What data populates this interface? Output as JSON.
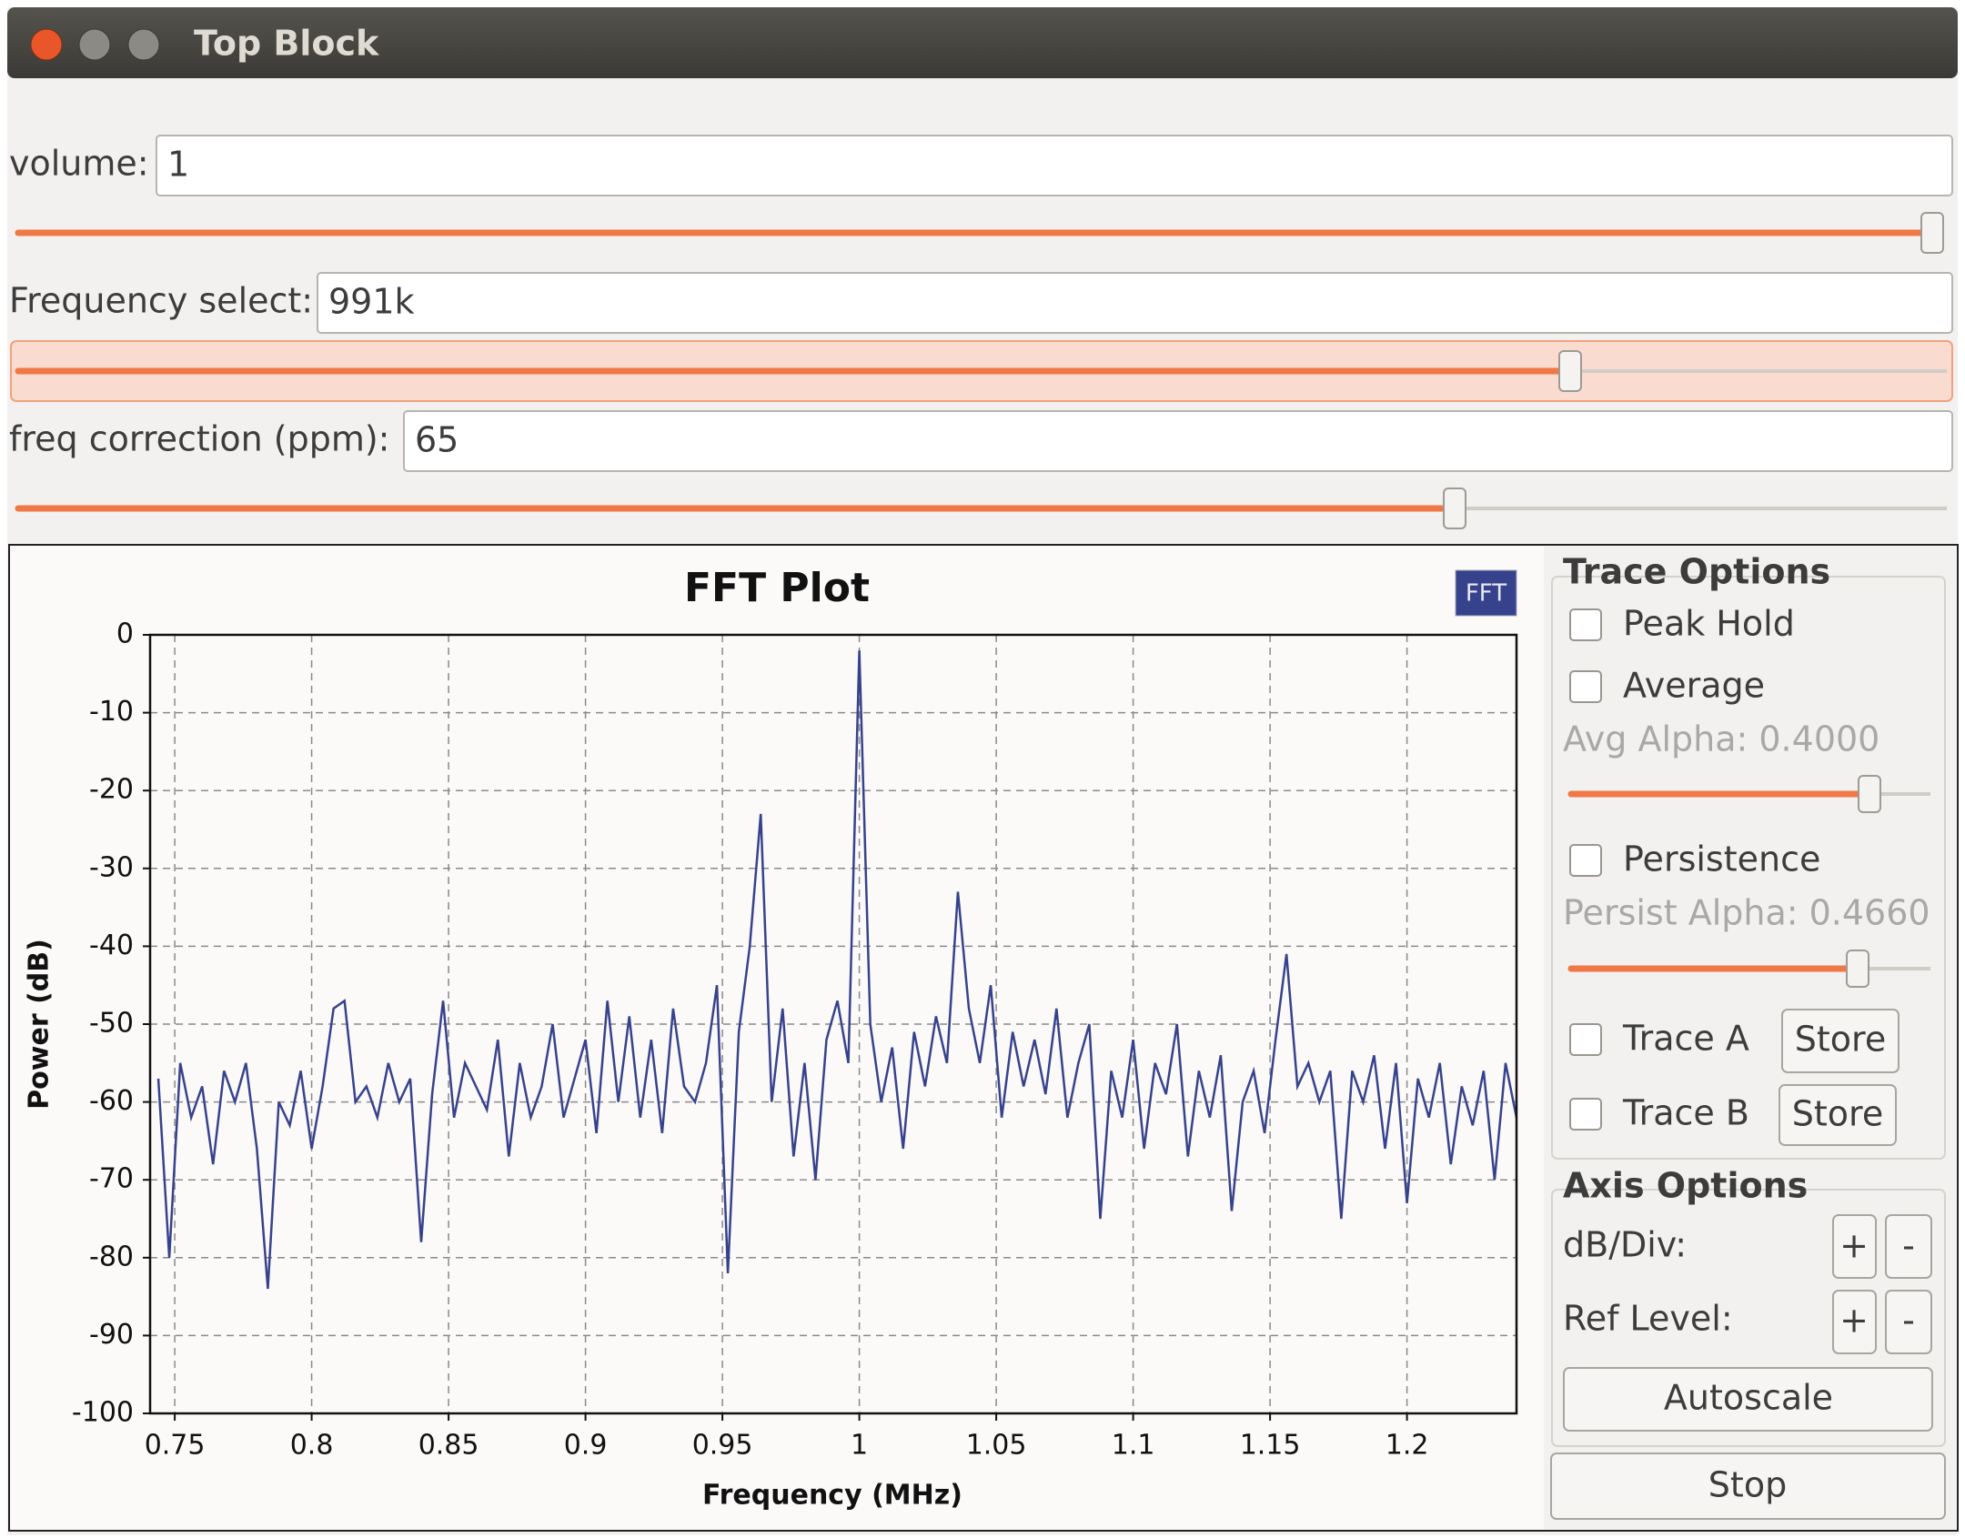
{
  "window": {
    "title": "Top Block"
  },
  "controls": [
    {
      "label": "volume:",
      "value": "1"
    },
    {
      "label": "Frequency select:",
      "value": "991k"
    },
    {
      "label": "freq correction (ppm):",
      "value": "65"
    }
  ],
  "chart_data": {
    "type": "line",
    "title": "FFT Plot",
    "x_label": "Frequency (MHz)",
    "y_label": "Power (dB)",
    "x": [
      0.744,
      0.748,
      0.752,
      0.756,
      0.76,
      0.764,
      0.768,
      0.772,
      0.776,
      0.78,
      0.784,
      0.788,
      0.792,
      0.796,
      0.8,
      0.804,
      0.808,
      0.812,
      0.816,
      0.82,
      0.824,
      0.828,
      0.832,
      0.836,
      0.84,
      0.844,
      0.848,
      0.852,
      0.856,
      0.86,
      0.864,
      0.868,
      0.872,
      0.876,
      0.88,
      0.884,
      0.888,
      0.892,
      0.896,
      0.9,
      0.904,
      0.908,
      0.912,
      0.916,
      0.92,
      0.924,
      0.928,
      0.932,
      0.936,
      0.94,
      0.944,
      0.948,
      0.952,
      0.956,
      0.96,
      0.964,
      0.968,
      0.972,
      0.976,
      0.98,
      0.984,
      0.988,
      0.992,
      0.996,
      1.0,
      1.004,
      1.008,
      1.012,
      1.016,
      1.02,
      1.024,
      1.028,
      1.032,
      1.036,
      1.04,
      1.044,
      1.048,
      1.052,
      1.056,
      1.06,
      1.064,
      1.068,
      1.072,
      1.076,
      1.08,
      1.084,
      1.088,
      1.092,
      1.096,
      1.1,
      1.104,
      1.108,
      1.112,
      1.116,
      1.12,
      1.124,
      1.128,
      1.132,
      1.136,
      1.14,
      1.144,
      1.148,
      1.152,
      1.156,
      1.16,
      1.164,
      1.168,
      1.172,
      1.176,
      1.18,
      1.184,
      1.188,
      1.192,
      1.196,
      1.2,
      1.204,
      1.208,
      1.212,
      1.216,
      1.22,
      1.224,
      1.228,
      1.232,
      1.236,
      1.24
    ],
    "series": [
      {
        "name": "FFT",
        "color": "#36438c",
        "values": [
          -57,
          -80,
          -55,
          -62,
          -58,
          -68,
          -56,
          -60,
          -55,
          -66,
          -84,
          -60,
          -63,
          -56,
          -66,
          -58,
          -48,
          -47,
          -60,
          -58,
          -62,
          -55,
          -60,
          -57,
          -78,
          -59,
          -47,
          -62,
          -55,
          -58,
          -61,
          -52,
          -67,
          -55,
          -62,
          -58,
          -50,
          -62,
          -57,
          -52,
          -64,
          -47,
          -60,
          -49,
          -62,
          -52,
          -64,
          -48,
          -58,
          -60,
          -55,
          -45,
          -82,
          -51,
          -40,
          -23,
          -60,
          -48,
          -67,
          -55,
          -70,
          -52,
          -47,
          -55,
          -2,
          -50,
          -60,
          -53,
          -66,
          -51,
          -58,
          -49,
          -55,
          -33,
          -48,
          -55,
          -45,
          -62,
          -51,
          -58,
          -52,
          -59,
          -48,
          -62,
          -55,
          -50,
          -75,
          -56,
          -62,
          -52,
          -66,
          -55,
          -59,
          -50,
          -67,
          -56,
          -62,
          -54,
          -74,
          -60,
          -56,
          -64,
          -52,
          -41,
          -58,
          -55,
          -60,
          -56,
          -75,
          -56,
          -60,
          -54,
          -66,
          -55,
          -73,
          -57,
          -62,
          -55,
          -68,
          -58,
          -63,
          -56,
          -70,
          -55,
          -62
        ]
      }
    ],
    "xlim": [
      0.741,
      1.24
    ],
    "ylim": [
      -100,
      0
    ],
    "xticks": [
      0.75,
      0.8,
      0.85,
      0.9,
      0.95,
      1,
      1.05,
      1.1,
      1.15,
      1.2
    ],
    "yticks": [
      0,
      -10,
      -20,
      -30,
      -40,
      -50,
      -60,
      -70,
      -80,
      -90,
      -100
    ],
    "grid": true,
    "legend": "upper right"
  },
  "trace_options": {
    "title": "Trace Options",
    "peak_hold": "Peak Hold",
    "average": "Average",
    "avg_alpha": "Avg Alpha: 0.4000",
    "persistence": "Persistence",
    "persist_alpha": "Persist Alpha: 0.4660",
    "trace_a": "Trace A",
    "store_a": "Store",
    "trace_b": "Trace B",
    "store_b": "Store"
  },
  "axis_options": {
    "title": "Axis Options",
    "db_div": "dB/Div:",
    "db_plus": "+",
    "db_minus": "-",
    "ref_level": "Ref Level:",
    "ref_plus": "+",
    "ref_minus": "-",
    "autoscale": "Autoscale"
  },
  "stop": "Stop"
}
